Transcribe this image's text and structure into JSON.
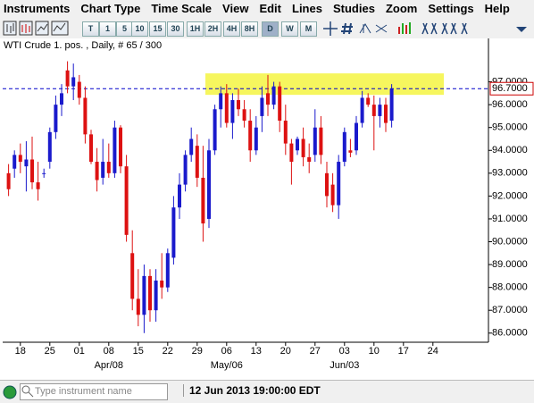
{
  "menu": {
    "items": [
      "Instruments",
      "Chart Type",
      "Time Scale",
      "View",
      "Edit",
      "Lines",
      "Studies",
      "Zoom",
      "Settings",
      "Help"
    ]
  },
  "toolbar": {
    "buttons": [
      "T",
      "1",
      "5",
      "10",
      "15",
      "30",
      "1H",
      "2H",
      "4H",
      "8H",
      "D",
      "W",
      "M"
    ]
  },
  "chart_data": {
    "type": "candlestick",
    "title": "WTI Crude 1. pos. , Daily, # 65 / 300",
    "categories": [
      null,
      null,
      "18",
      null,
      null,
      null,
      null,
      "25",
      null,
      null,
      null,
      null,
      "01",
      null,
      null,
      null,
      null,
      "08",
      null,
      null,
      null,
      null,
      "15",
      null,
      null,
      null,
      null,
      "22",
      null,
      null,
      null,
      null,
      "29",
      null,
      null,
      null,
      null,
      "06",
      null,
      null,
      null,
      null,
      "13",
      null,
      null,
      null,
      null,
      "20",
      null,
      null,
      null,
      null,
      "27",
      null,
      null,
      null,
      null,
      "03",
      null,
      null,
      null,
      null,
      "10",
      null,
      null,
      null,
      null,
      "17",
      null,
      null,
      null,
      null,
      "24"
    ],
    "category_groups": [
      null,
      null,
      null,
      null,
      null,
      null,
      null,
      null,
      null,
      null,
      null,
      null,
      null,
      null,
      null,
      null,
      null,
      "Apr/08",
      null,
      null,
      null,
      null,
      null,
      null,
      null,
      null,
      null,
      null,
      null,
      null,
      null,
      null,
      null,
      null,
      null,
      null,
      null,
      "May/06",
      null,
      null,
      null,
      null,
      null,
      null,
      null,
      null,
      null,
      null,
      null,
      null,
      null,
      null,
      null,
      null,
      null,
      null,
      null,
      "Jun/03",
      null,
      null,
      null,
      null,
      null,
      null,
      null,
      null,
      null,
      null,
      null,
      null,
      null,
      null,
      null,
      null
    ],
    "open": [
      93.0,
      93.2,
      93.8,
      93.3,
      93.6,
      92.6,
      93.0,
      93.5,
      94.8,
      96.0,
      97.5,
      96.8,
      97.0,
      96.3,
      94.7,
      93.5,
      92.8,
      93.5,
      93.0,
      95.0,
      93.3,
      89.5,
      87.5,
      86.8,
      88.5,
      87.0,
      88.3,
      88.0,
      89.3,
      91.5,
      92.5,
      93.8,
      94.2,
      92.8,
      91.0,
      94.0,
      95.8,
      96.5,
      95.2,
      96.2,
      95.8,
      95.3,
      94.0,
      95.5,
      96.5,
      96.0,
      96.8,
      95.3,
      94.3,
      94.0,
      94.5,
      93.7,
      93.8,
      95.0,
      93.0,
      92.5,
      91.6,
      93.5,
      94.0,
      94.0,
      95.2,
      96.3,
      96.0,
      95.5,
      96.0,
      95.3,
      null,
      null,
      null,
      null,
      null,
      null,
      null
    ],
    "high": [
      93.4,
      94.0,
      94.3,
      94.4,
      94.6,
      93.5,
      93.2,
      95.0,
      96.4,
      96.9,
      97.9,
      97.8,
      97.3,
      96.8,
      94.9,
      94.1,
      94.5,
      94.3,
      95.3,
      95.1,
      93.8,
      90.5,
      88.8,
      89.0,
      88.8,
      88.8,
      89.5,
      89.7,
      92.0,
      93.0,
      94.0,
      95.0,
      94.7,
      94.2,
      94.5,
      96.0,
      96.8,
      96.9,
      96.5,
      96.7,
      96.2,
      95.8,
      95.5,
      96.8,
      97.3,
      97.0,
      97.0,
      96.0,
      94.5,
      94.6,
      95.0,
      94.3,
      95.8,
      95.5,
      93.5,
      93.0,
      93.8,
      95.0,
      94.5,
      95.5,
      96.6,
      96.5,
      96.4,
      96.3,
      96.3,
      96.9,
      null,
      null,
      null,
      null,
      null,
      null,
      null
    ],
    "low": [
      92.0,
      92.8,
      93.0,
      92.2,
      92.3,
      91.8,
      92.8,
      93.2,
      94.5,
      95.5,
      96.5,
      96.2,
      96.0,
      94.3,
      93.4,
      92.2,
      92.5,
      92.8,
      92.8,
      93.0,
      90.0,
      87.0,
      86.3,
      86.0,
      86.5,
      86.5,
      87.5,
      87.8,
      89.0,
      91.0,
      92.2,
      93.5,
      92.4,
      90.0,
      90.6,
      93.8,
      95.0,
      95.0,
      94.5,
      95.5,
      95.0,
      93.5,
      93.8,
      94.8,
      95.5,
      95.8,
      94.8,
      93.8,
      92.5,
      93.8,
      93.3,
      93.0,
      93.5,
      93.4,
      91.5,
      91.3,
      91.0,
      93.3,
      93.7,
      93.8,
      95.0,
      95.9,
      94.0,
      95.0,
      94.8,
      95.0,
      null,
      null,
      null,
      null,
      null,
      null,
      null
    ],
    "close": [
      92.3,
      93.8,
      93.5,
      93.6,
      92.6,
      92.3,
      93.0,
      94.8,
      96.0,
      96.5,
      96.8,
      97.2,
      96.3,
      94.7,
      93.5,
      92.7,
      93.5,
      93.0,
      95.0,
      93.3,
      90.3,
      87.5,
      86.8,
      88.5,
      87.0,
      88.3,
      88.0,
      89.5,
      91.5,
      92.5,
      93.8,
      94.5,
      92.8,
      90.8,
      94.0,
      95.8,
      96.5,
      95.2,
      96.2,
      95.8,
      95.3,
      94.0,
      95.0,
      96.3,
      96.0,
      96.8,
      95.3,
      94.3,
      93.5,
      94.5,
      93.7,
      93.5,
      95.0,
      93.8,
      92.0,
      91.6,
      93.5,
      94.8,
      93.9,
      95.2,
      96.3,
      96.0,
      95.5,
      96.0,
      95.2,
      96.7,
      null,
      null,
      null,
      null,
      null,
      null,
      null
    ],
    "up_color": "#1a1acc",
    "down_color": "#dd1111",
    "ylim": [
      85.6,
      98.9
    ],
    "yticks": [
      {
        "value": 86,
        "label": "86.0000"
      },
      {
        "value": 87,
        "label": "87.0000"
      },
      {
        "value": 88,
        "label": "88.0000"
      },
      {
        "value": 89,
        "label": "89.0000"
      },
      {
        "value": 90,
        "label": "90.0000"
      },
      {
        "value": 91,
        "label": "91.0000"
      },
      {
        "value": 92,
        "label": "92.0000"
      },
      {
        "value": 93,
        "label": "93.0000"
      },
      {
        "value": 94,
        "label": "94.0000"
      },
      {
        "value": 95,
        "label": "95.0000"
      },
      {
        "value": 96,
        "label": "96.0000"
      },
      {
        "value": 97,
        "label": "97.0000"
      }
    ],
    "highlight_range": [
      96.43,
      97.37
    ],
    "highlight_color": "#f5f542",
    "last_price": {
      "value": 96.7,
      "label": "96.7000"
    },
    "last_price_color": "#0000cc"
  },
  "status_bar": {
    "search_placeholder": "Type instrument name",
    "datetime": "12 Jun 2013 19:00:00 EDT"
  }
}
